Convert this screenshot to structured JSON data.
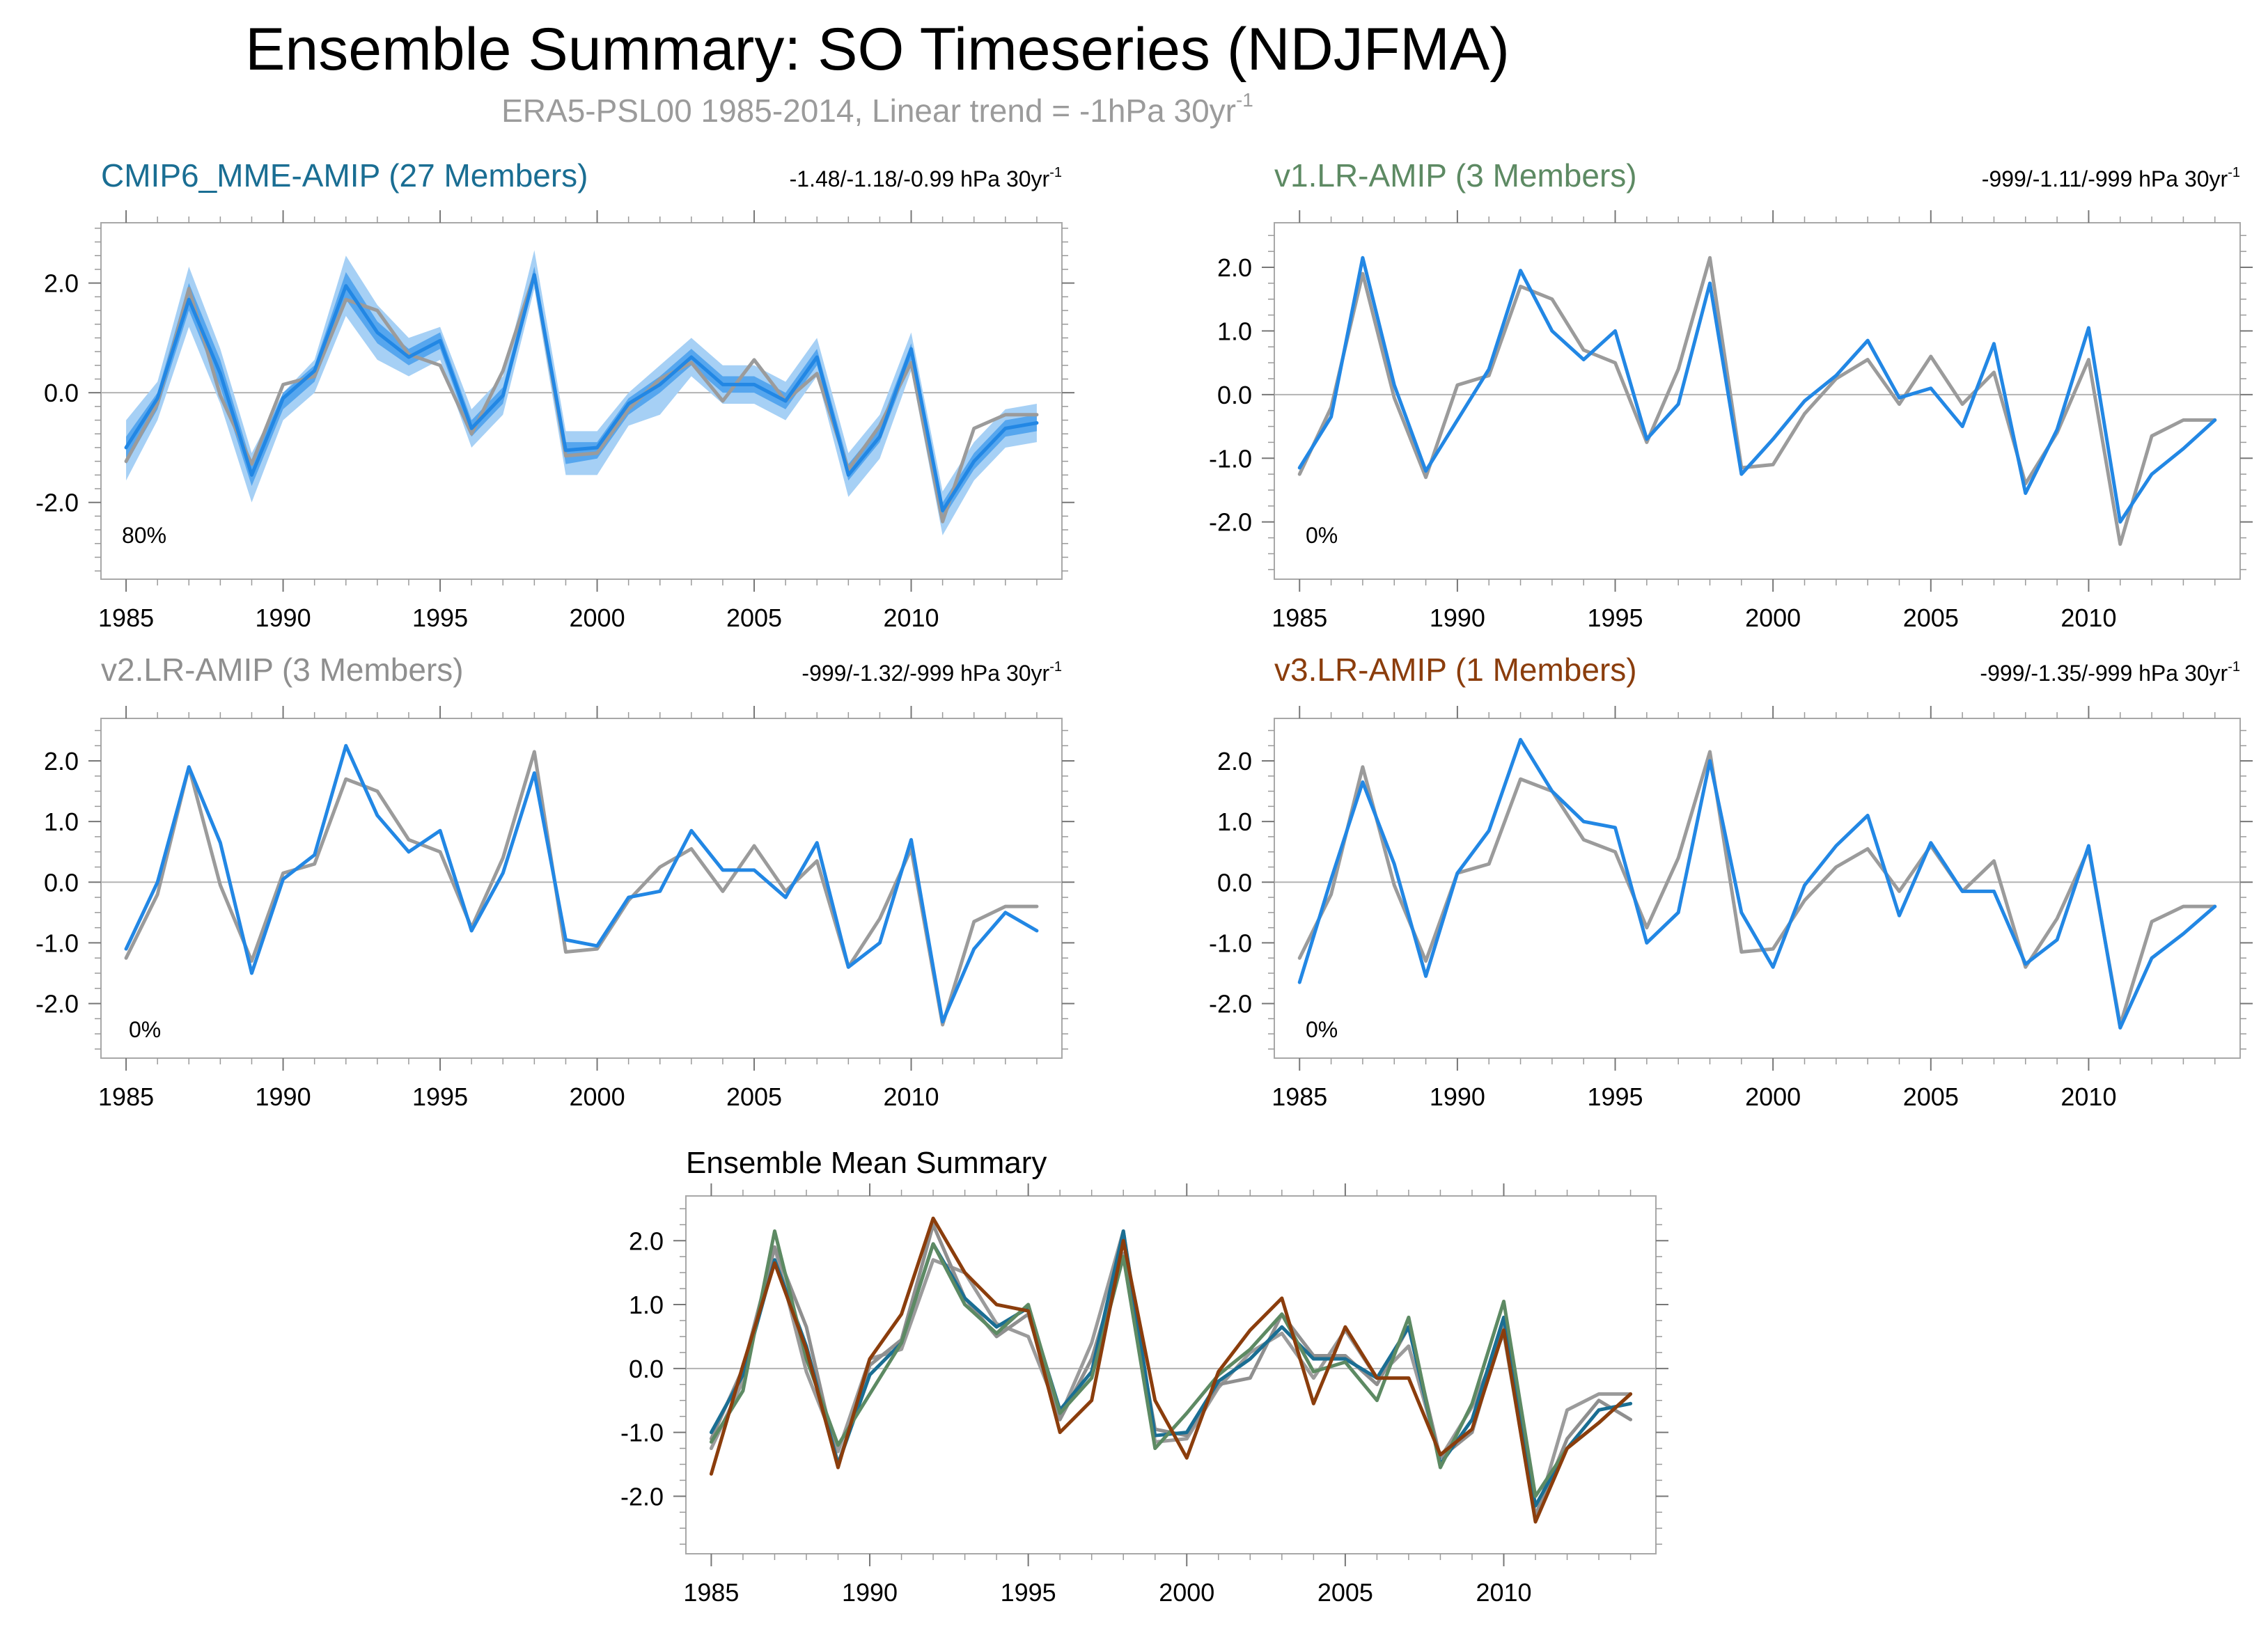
{
  "title": "Ensemble Summary: SO Timeseries (NDJFMA)",
  "subtitle": {
    "main": "ERA5-PSL00 1985-2014, Linear trend = -1hPa 30yr",
    "sup": "-1"
  },
  "colors": {
    "obs": "#9b9b9b",
    "model": "#2287e4",
    "band_outer": "#a6d0f5",
    "band_inner": "#56a6ee",
    "mme_title": "#1a6e93",
    "v1": "#5d8a63",
    "v2": "#8f8f8f",
    "v3": "#8b3d0c"
  },
  "chart_data": [
    {
      "type": "line",
      "id": "p1",
      "title": "CMIP6_MME-AMIP (27 Members)",
      "title_color_key": "mme_title",
      "trend": {
        "main": "-1.48/-1.18/-0.99 hPa 30yr",
        "sup": "-1"
      },
      "percent": "80%",
      "ylim": [
        -3.4,
        3.1
      ],
      "yticks": [
        -2.0,
        0.0,
        2.0
      ],
      "ytick_labels": [
        "-2.0",
        "0.0",
        "2.0"
      ],
      "minor_step": 0.25,
      "x": [
        1985,
        1986,
        1987,
        1988,
        1989,
        1990,
        1991,
        1992,
        1993,
        1994,
        1995,
        1996,
        1997,
        1998,
        1999,
        2000,
        2001,
        2002,
        2003,
        2004,
        2005,
        2006,
        2007,
        2008,
        2009,
        2010,
        2011,
        2012,
        2013,
        2014
      ],
      "xticks": [
        1985,
        1990,
        1995,
        2000,
        2005,
        2010
      ],
      "xtick_labels": [
        "1985",
        "1990",
        "1995",
        "2000",
        "2005",
        "2010"
      ],
      "band_outer": {
        "lower": [
          -1.6,
          -0.5,
          1.2,
          -0.2,
          -2.0,
          -0.5,
          0.0,
          1.4,
          0.6,
          0.3,
          0.6,
          -1.0,
          -0.4,
          1.9,
          -1.5,
          -1.5,
          -0.6,
          -0.4,
          0.3,
          -0.2,
          -0.2,
          -0.5,
          0.3,
          -1.9,
          -1.2,
          0.4,
          -2.6,
          -1.6,
          -1.0,
          -0.9
        ],
        "upper": [
          -0.5,
          0.2,
          2.3,
          0.8,
          -1.1,
          0.0,
          0.6,
          2.5,
          1.6,
          1.0,
          1.2,
          -0.3,
          0.3,
          2.6,
          -0.7,
          -0.7,
          0.0,
          0.5,
          1.0,
          0.5,
          0.5,
          0.2,
          1.0,
          -1.1,
          -0.4,
          1.1,
          -1.8,
          -0.9,
          -0.3,
          -0.2
        ]
      },
      "band_inner": {
        "lower": [
          -1.3,
          -0.3,
          1.5,
          0.1,
          -1.7,
          -0.3,
          0.2,
          1.7,
          0.9,
          0.5,
          0.8,
          -0.8,
          -0.2,
          2.1,
          -1.3,
          -1.2,
          -0.4,
          0.0,
          0.5,
          0.0,
          0.0,
          -0.3,
          0.5,
          -1.6,
          -0.9,
          0.6,
          -2.3,
          -1.4,
          -0.8,
          -0.7
        ],
        "upper": [
          -0.8,
          0.0,
          2.0,
          0.6,
          -1.3,
          0.0,
          0.5,
          2.2,
          1.3,
          0.8,
          1.1,
          -0.5,
          0.1,
          2.3,
          -0.9,
          -0.9,
          -0.1,
          0.3,
          0.8,
          0.3,
          0.3,
          0.0,
          0.8,
          -1.3,
          -0.6,
          0.9,
          -2.0,
          -1.1,
          -0.5,
          -0.4
        ]
      },
      "series": [
        {
          "name": "ERA5-PSL00",
          "color_key": "obs",
          "values": [
            -1.25,
            -0.2,
            1.9,
            -0.05,
            -1.3,
            0.15,
            0.3,
            1.7,
            1.5,
            0.7,
            0.5,
            -0.75,
            0.4,
            2.15,
            -1.15,
            -1.1,
            -0.3,
            0.25,
            0.55,
            -0.15,
            0.6,
            -0.15,
            0.35,
            -1.4,
            -0.6,
            0.55,
            -2.35,
            -0.65,
            -0.4,
            -0.4
          ]
        },
        {
          "name": "CMIP6_MME-AMIP",
          "color_key": "model",
          "values": [
            -1.0,
            -0.1,
            1.7,
            0.35,
            -1.5,
            -0.1,
            0.4,
            1.95,
            1.1,
            0.65,
            0.95,
            -0.65,
            -0.05,
            2.15,
            -1.05,
            -1.0,
            -0.2,
            0.15,
            0.65,
            0.15,
            0.15,
            -0.15,
            0.65,
            -1.5,
            -0.8,
            0.8,
            -2.15,
            -1.25,
            -0.65,
            -0.55
          ]
        }
      ]
    },
    {
      "type": "line",
      "id": "p2",
      "title": "v1.LR-AMIP (3 Members)",
      "title_color_key": "v1",
      "trend": {
        "main": "-999/-1.11/-999 hPa 30yr",
        "sup": "-1"
      },
      "percent": "0%",
      "ylim": [
        -2.9,
        2.7
      ],
      "yticks": [
        -2.0,
        -1.0,
        0.0,
        1.0,
        2.0
      ],
      "ytick_labels": [
        "-2.0",
        "-1.0",
        "0.0",
        "1.0",
        "2.0"
      ],
      "minor_step": 0.25,
      "x": [
        1985,
        1986,
        1987,
        1988,
        1989,
        1990,
        1991,
        1992,
        1993,
        1994,
        1995,
        1996,
        1997,
        1998,
        1999,
        2000,
        2001,
        2002,
        2003,
        2004,
        2005,
        2006,
        2007,
        2008,
        2009,
        2010,
        2011,
        2012,
        2013,
        2014
      ],
      "xticks": [
        1985,
        1990,
        1995,
        2000,
        2005,
        2010
      ],
      "xtick_labels": [
        "1985",
        "1990",
        "1995",
        "2000",
        "2005",
        "2010"
      ],
      "series": [
        {
          "name": "ERA5-PSL00",
          "color_key": "obs",
          "values": [
            -1.25,
            -0.2,
            1.9,
            -0.05,
            -1.3,
            0.15,
            0.3,
            1.7,
            1.5,
            0.7,
            0.5,
            -0.75,
            0.4,
            2.15,
            -1.15,
            -1.1,
            -0.3,
            0.25,
            0.55,
            -0.15,
            0.6,
            -0.15,
            0.35,
            -1.4,
            -0.6,
            0.55,
            -2.35,
            -0.65,
            -0.4,
            -0.4
          ]
        },
        {
          "name": "v1.LR-AMIP",
          "color_key": "model",
          "values": [
            -1.15,
            -0.35,
            2.15,
            0.15,
            -1.2,
            -0.4,
            0.4,
            1.95,
            1.0,
            0.55,
            1.0,
            -0.7,
            -0.15,
            1.75,
            -1.25,
            -0.7,
            -0.1,
            0.3,
            0.85,
            -0.05,
            0.1,
            -0.5,
            0.8,
            -1.55,
            -0.55,
            1.05,
            -2.0,
            -1.25,
            -0.85,
            -0.4
          ]
        }
      ]
    },
    {
      "type": "line",
      "id": "p3",
      "title": "v2.LR-AMIP (3 Members)",
      "title_color_key": "v2",
      "trend": {
        "main": "-999/-1.32/-999 hPa 30yr",
        "sup": "-1"
      },
      "percent": "0%",
      "ylim": [
        -2.9,
        2.7
      ],
      "yticks": [
        -2.0,
        -1.0,
        0.0,
        1.0,
        2.0
      ],
      "ytick_labels": [
        "-2.0",
        "-1.0",
        "0.0",
        "1.0",
        "2.0"
      ],
      "minor_step": 0.25,
      "x": [
        1985,
        1986,
        1987,
        1988,
        1989,
        1990,
        1991,
        1992,
        1993,
        1994,
        1995,
        1996,
        1997,
        1998,
        1999,
        2000,
        2001,
        2002,
        2003,
        2004,
        2005,
        2006,
        2007,
        2008,
        2009,
        2010,
        2011,
        2012,
        2013,
        2014
      ],
      "xticks": [
        1985,
        1990,
        1995,
        2000,
        2005,
        2010
      ],
      "xtick_labels": [
        "1985",
        "1990",
        "1995",
        "2000",
        "2005",
        "2010"
      ],
      "series": [
        {
          "name": "ERA5-PSL00",
          "color_key": "obs",
          "values": [
            -1.25,
            -0.2,
            1.9,
            -0.05,
            -1.3,
            0.15,
            0.3,
            1.7,
            1.5,
            0.7,
            0.5,
            -0.75,
            0.4,
            2.15,
            -1.15,
            -1.1,
            -0.3,
            0.25,
            0.55,
            -0.15,
            0.6,
            -0.15,
            0.35,
            -1.4,
            -0.6,
            0.55,
            -2.35,
            -0.65,
            -0.4,
            -0.4
          ]
        },
        {
          "name": "v2.LR-AMIP",
          "color_key": "model",
          "values": [
            -1.1,
            0.0,
            1.9,
            0.65,
            -1.5,
            0.05,
            0.45,
            2.25,
            1.1,
            0.5,
            0.85,
            -0.8,
            0.15,
            1.8,
            -0.95,
            -1.05,
            -0.25,
            -0.15,
            0.85,
            0.2,
            0.2,
            -0.25,
            0.65,
            -1.4,
            -1.0,
            0.7,
            -2.3,
            -1.1,
            -0.5,
            -0.8
          ]
        }
      ]
    },
    {
      "type": "line",
      "id": "p4",
      "title": "v3.LR-AMIP (1 Members)",
      "title_color_key": "v3",
      "trend": {
        "main": "-999/-1.35/-999 hPa 30yr",
        "sup": "-1"
      },
      "percent": "0%",
      "ylim": [
        -2.9,
        2.7
      ],
      "yticks": [
        -2.0,
        -1.0,
        0.0,
        1.0,
        2.0
      ],
      "ytick_labels": [
        "-2.0",
        "-1.0",
        "0.0",
        "1.0",
        "2.0"
      ],
      "minor_step": 0.25,
      "x": [
        1985,
        1986,
        1987,
        1988,
        1989,
        1990,
        1991,
        1992,
        1993,
        1994,
        1995,
        1996,
        1997,
        1998,
        1999,
        2000,
        2001,
        2002,
        2003,
        2004,
        2005,
        2006,
        2007,
        2008,
        2009,
        2010,
        2011,
        2012,
        2013,
        2014
      ],
      "xticks": [
        1985,
        1990,
        1995,
        2000,
        2005,
        2010
      ],
      "xtick_labels": [
        "1985",
        "1990",
        "1995",
        "2000",
        "2005",
        "2010"
      ],
      "series": [
        {
          "name": "ERA5-PSL00",
          "color_key": "obs",
          "values": [
            -1.25,
            -0.2,
            1.9,
            -0.05,
            -1.3,
            0.15,
            0.3,
            1.7,
            1.5,
            0.7,
            0.5,
            -0.75,
            0.4,
            2.15,
            -1.15,
            -1.1,
            -0.3,
            0.25,
            0.55,
            -0.15,
            0.6,
            -0.15,
            0.35,
            -1.4,
            -0.6,
            0.55,
            -2.35,
            -0.65,
            -0.4,
            -0.4
          ]
        },
        {
          "name": "v3.LR-AMIP",
          "color_key": "model",
          "values": [
            -1.65,
            0.05,
            1.65,
            0.3,
            -1.55,
            0.15,
            0.85,
            2.35,
            1.5,
            1.0,
            0.9,
            -1.0,
            -0.5,
            2.0,
            -0.5,
            -1.4,
            -0.05,
            0.6,
            1.1,
            -0.55,
            0.65,
            -0.15,
            -0.15,
            -1.35,
            -0.95,
            0.6,
            -2.4,
            -1.25,
            -0.85,
            -0.4
          ]
        }
      ]
    },
    {
      "type": "line",
      "id": "p5",
      "title": "Ensemble Mean Summary",
      "title_color_key": null,
      "ylim": [
        -2.9,
        2.7
      ],
      "yticks": [
        -2.0,
        -1.0,
        0.0,
        1.0,
        2.0
      ],
      "ytick_labels": [
        "-2.0",
        "-1.0",
        "0.0",
        "1.0",
        "2.0"
      ],
      "minor_step": 0.25,
      "x": [
        1985,
        1986,
        1987,
        1988,
        1989,
        1990,
        1991,
        1992,
        1993,
        1994,
        1995,
        1996,
        1997,
        1998,
        1999,
        2000,
        2001,
        2002,
        2003,
        2004,
        2005,
        2006,
        2007,
        2008,
        2009,
        2010,
        2011,
        2012,
        2013,
        2014
      ],
      "xticks": [
        1985,
        1990,
        1995,
        2000,
        2005,
        2010
      ],
      "xtick_labels": [
        "1985",
        "1990",
        "1995",
        "2000",
        "2005",
        "2010"
      ],
      "series": [
        {
          "name": "ERA5-PSL00",
          "color_key": "obs",
          "values": [
            -1.25,
            -0.2,
            1.9,
            -0.05,
            -1.3,
            0.15,
            0.3,
            1.7,
            1.5,
            0.7,
            0.5,
            -0.75,
            0.4,
            2.15,
            -1.15,
            -1.1,
            -0.3,
            0.25,
            0.55,
            -0.15,
            0.6,
            -0.15,
            0.35,
            -1.4,
            -0.6,
            0.55,
            -2.35,
            -0.65,
            -0.4,
            -0.4
          ]
        },
        {
          "name": "v2.LR-AMIP",
          "color_key": "v2",
          "values": [
            -1.1,
            0.0,
            1.9,
            0.65,
            -1.5,
            0.05,
            0.45,
            2.25,
            1.1,
            0.5,
            0.85,
            -0.8,
            0.15,
            1.8,
            -0.95,
            -1.05,
            -0.25,
            -0.15,
            0.85,
            0.2,
            0.2,
            -0.25,
            0.65,
            -1.4,
            -1.0,
            0.7,
            -2.3,
            -1.1,
            -0.5,
            -0.8
          ]
        },
        {
          "name": "CMIP6_MME-AMIP",
          "color_key": "mme_title",
          "values": [
            -1.0,
            -0.1,
            1.7,
            0.35,
            -1.5,
            -0.1,
            0.4,
            1.95,
            1.1,
            0.65,
            0.95,
            -0.65,
            -0.05,
            2.15,
            -1.05,
            -1.0,
            -0.2,
            0.15,
            0.65,
            0.15,
            0.15,
            -0.15,
            0.65,
            -1.5,
            -0.8,
            0.8,
            -2.15,
            -1.25,
            -0.65,
            -0.55
          ]
        },
        {
          "name": "v1.LR-AMIP",
          "color_key": "v1",
          "values": [
            -1.15,
            -0.35,
            2.15,
            0.15,
            -1.2,
            -0.4,
            0.4,
            1.95,
            1.0,
            0.55,
            1.0,
            -0.7,
            -0.15,
            1.75,
            -1.25,
            -0.7,
            -0.1,
            0.3,
            0.85,
            -0.05,
            0.1,
            -0.5,
            0.8,
            -1.55,
            -0.55,
            1.05,
            -2.0,
            -1.25,
            -0.85,
            -0.4
          ]
        },
        {
          "name": "v3.LR-AMIP",
          "color_key": "v3",
          "values": [
            -1.65,
            0.05,
            1.65,
            0.3,
            -1.55,
            0.15,
            0.85,
            2.35,
            1.5,
            1.0,
            0.9,
            -1.0,
            -0.5,
            2.0,
            -0.5,
            -1.4,
            -0.05,
            0.6,
            1.1,
            -0.55,
            0.65,
            -0.15,
            -0.15,
            -1.35,
            -0.95,
            0.6,
            -2.4,
            -1.25,
            -0.85,
            -0.4
          ]
        }
      ]
    }
  ]
}
